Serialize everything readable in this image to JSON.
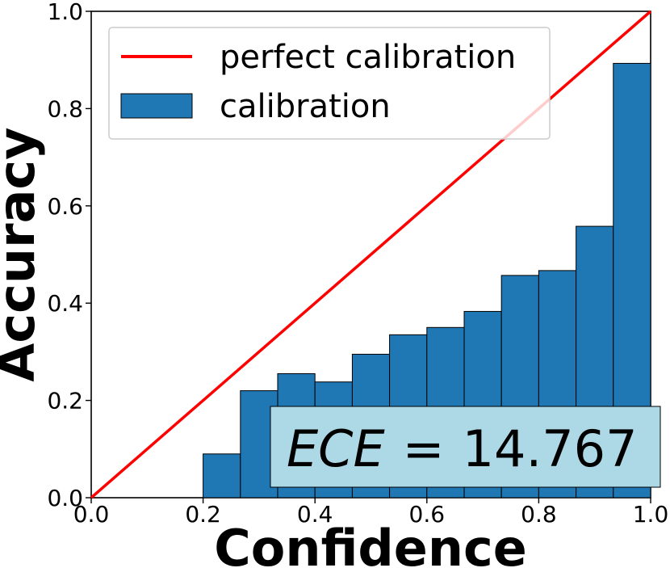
{
  "chart_data": {
    "type": "bar",
    "title": "",
    "xlabel": "Confidence",
    "ylabel": "Accuracy",
    "xlim": [
      0.0,
      1.0
    ],
    "ylim": [
      0.0,
      1.0
    ],
    "grid": false,
    "x_ticks": [
      "0.0",
      "0.2",
      "0.4",
      "0.6",
      "0.8",
      "1.0"
    ],
    "y_ticks": [
      "0.0",
      "0.2",
      "0.4",
      "0.6",
      "0.8",
      "1.0"
    ],
    "bin_edges": [
      0.0,
      0.0667,
      0.1333,
      0.2,
      0.2667,
      0.3333,
      0.4,
      0.4667,
      0.5333,
      0.6,
      0.6667,
      0.7333,
      0.8,
      0.8667,
      0.9333,
      1.0
    ],
    "series": [
      {
        "name": "calibration",
        "kind": "bar",
        "color": "#1f77b4",
        "values": [
          0.0,
          0.0,
          0.0,
          0.09,
          0.22,
          0.255,
          0.238,
          0.295,
          0.335,
          0.35,
          0.383,
          0.457,
          0.467,
          0.558,
          0.893
        ]
      },
      {
        "name": "perfect calibration",
        "kind": "line",
        "color": "#ff0000",
        "x": [
          0.0,
          1.0
        ],
        "y": [
          0.0,
          1.0
        ]
      }
    ],
    "legend": {
      "position": "top-left",
      "entries": [
        "perfect calibration",
        "calibration"
      ]
    },
    "annotation": {
      "italic_part": "ECE",
      "equals": "=",
      "value": "14.767",
      "background": "#add8e6",
      "position": "bottom-right"
    }
  }
}
